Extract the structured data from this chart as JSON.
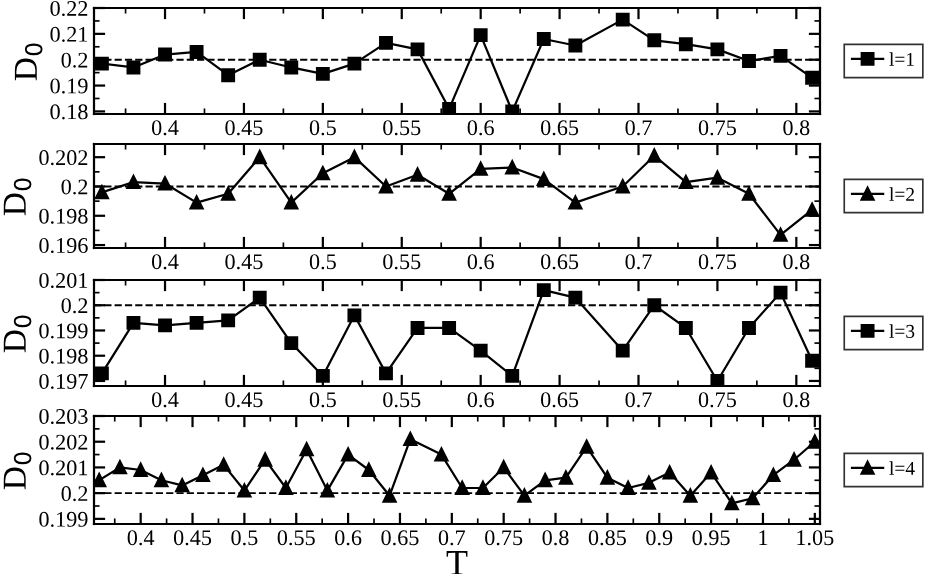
{
  "chart_data": [
    {
      "type": "line",
      "ylabel": "D$_{0}$",
      "x": [
        0.36,
        0.38,
        0.4,
        0.42,
        0.44,
        0.46,
        0.48,
        0.5,
        0.52,
        0.54,
        0.56,
        0.58,
        0.6,
        0.62,
        0.64,
        0.66,
        0.69,
        0.71,
        0.73,
        0.75,
        0.77,
        0.79,
        0.81
      ],
      "series": [
        {
          "name": "l=1",
          "color": "#000000",
          "marker": "square",
          "values": [
            0.1985,
            0.197,
            0.202,
            0.203,
            0.194,
            0.2,
            0.197,
            0.1945,
            0.1985,
            0.2065,
            0.204,
            0.181,
            0.2095,
            0.18,
            0.208,
            0.2055,
            0.2155,
            0.2075,
            0.206,
            0.204,
            0.1995,
            0.2015,
            0.193
          ]
        }
      ],
      "xlim": [
        0.355,
        0.815
      ],
      "xticks": [
        0.4,
        0.45,
        0.5,
        0.55,
        0.6,
        0.65,
        0.7,
        0.75,
        0.8
      ],
      "ylim": [
        0.179,
        0.22
      ],
      "yticks": [
        0.18,
        0.19,
        0.2,
        0.21,
        0.22
      ],
      "ref_lines": [
        {
          "axis": "y",
          "value": 0.2,
          "line_style": "dashed",
          "color": "#000000"
        }
      ],
      "legend": "right",
      "line_style": "solid",
      "grid": false
    },
    {
      "type": "line",
      "ylabel": "D$_{0}$",
      "x": [
        0.36,
        0.38,
        0.4,
        0.42,
        0.44,
        0.46,
        0.48,
        0.5,
        0.52,
        0.54,
        0.56,
        0.58,
        0.6,
        0.62,
        0.64,
        0.66,
        0.69,
        0.71,
        0.73,
        0.75,
        0.77,
        0.79,
        0.81
      ],
      "series": [
        {
          "name": "l=2",
          "color": "#000000",
          "marker": "triangle",
          "values": [
            0.1996,
            0.2003,
            0.2002,
            0.1989,
            0.1995,
            0.202,
            0.1989,
            0.2009,
            0.202,
            0.2,
            0.2008,
            0.1995,
            0.2012,
            0.2013,
            0.2005,
            0.1989,
            0.2,
            0.2021,
            0.2003,
            0.2006,
            0.1995,
            0.1967,
            0.1984
          ]
        }
      ],
      "xlim": [
        0.355,
        0.815
      ],
      "xticks": [
        0.4,
        0.45,
        0.5,
        0.55,
        0.6,
        0.65,
        0.7,
        0.75,
        0.8
      ],
      "ylim": [
        0.1958,
        0.2029
      ],
      "yticks": [
        0.196,
        0.198,
        0.2,
        0.202
      ],
      "ref_lines": [
        {
          "axis": "y",
          "value": 0.2,
          "line_style": "dashed",
          "color": "#000000"
        }
      ],
      "legend": "right",
      "line_style": "solid",
      "grid": false
    },
    {
      "type": "line",
      "ylabel": "D$_{0}$",
      "x": [
        0.36,
        0.38,
        0.4,
        0.42,
        0.44,
        0.46,
        0.48,
        0.5,
        0.52,
        0.54,
        0.56,
        0.58,
        0.6,
        0.62,
        0.64,
        0.66,
        0.69,
        0.71,
        0.73,
        0.75,
        0.77,
        0.79,
        0.81
      ],
      "series": [
        {
          "name": "l=3",
          "color": "#000000",
          "marker": "square",
          "values": [
            0.1973,
            0.1993,
            0.1992,
            0.1993,
            0.1994,
            0.2003,
            0.1985,
            0.1972,
            0.1996,
            0.1973,
            0.1991,
            0.1991,
            0.1982,
            0.1972,
            0.2006,
            0.2003,
            0.1982,
            0.2,
            0.1991,
            0.197,
            0.1991,
            0.2005,
            0.1978
          ]
        }
      ],
      "xlim": [
        0.355,
        0.815
      ],
      "xticks": [
        0.4,
        0.45,
        0.5,
        0.55,
        0.6,
        0.65,
        0.7,
        0.75,
        0.8
      ],
      "ylim": [
        0.1968,
        0.201
      ],
      "yticks": [
        0.197,
        0.198,
        0.199,
        0.2,
        0.201
      ],
      "ref_lines": [
        {
          "axis": "y",
          "value": 0.2,
          "line_style": "dashed",
          "color": "#000000"
        }
      ],
      "legend": "right",
      "line_style": "solid",
      "grid": false
    },
    {
      "type": "line",
      "xlabel": "T",
      "ylabel": "D$_{0}$",
      "x": [
        0.36,
        0.38,
        0.4,
        0.42,
        0.44,
        0.46,
        0.48,
        0.5,
        0.52,
        0.54,
        0.56,
        0.58,
        0.6,
        0.62,
        0.64,
        0.66,
        0.69,
        0.71,
        0.73,
        0.75,
        0.77,
        0.79,
        0.81,
        0.83,
        0.85,
        0.87,
        0.89,
        0.91,
        0.93,
        0.95,
        0.97,
        0.99,
        1.01,
        1.03,
        1.05
      ],
      "series": [
        {
          "name": "l=4",
          "color": "#000000",
          "marker": "triangle",
          "values": [
            0.2005,
            0.201,
            0.2009,
            0.2005,
            0.2003,
            0.2007,
            0.2011,
            0.2001,
            0.2013,
            0.2002,
            0.2017,
            0.2001,
            0.2015,
            0.2009,
            0.1999,
            0.2021,
            0.2015,
            0.2002,
            0.2002,
            0.201,
            0.1999,
            0.2005,
            0.2006,
            0.2018,
            0.2006,
            0.2002,
            0.2004,
            0.2008,
            0.1999,
            0.2008,
            0.1996,
            0.1998,
            0.2007,
            0.2013,
            0.202
          ]
        }
      ],
      "xlim": [
        0.355,
        1.055
      ],
      "xticks": [
        0.4,
        0.45,
        0.5,
        0.55,
        0.6,
        0.65,
        0.7,
        0.75,
        0.8,
        0.85,
        0.9,
        0.95,
        1,
        1.05
      ],
      "ylim": [
        0.1988,
        0.203
      ],
      "yticks": [
        0.199,
        0.2,
        0.201,
        0.202,
        0.203
      ],
      "ref_lines": [
        {
          "axis": "y",
          "value": 0.2,
          "line_style": "dashed",
          "color": "#000000"
        }
      ],
      "legend": "right",
      "line_style": "solid",
      "grid": false
    }
  ]
}
